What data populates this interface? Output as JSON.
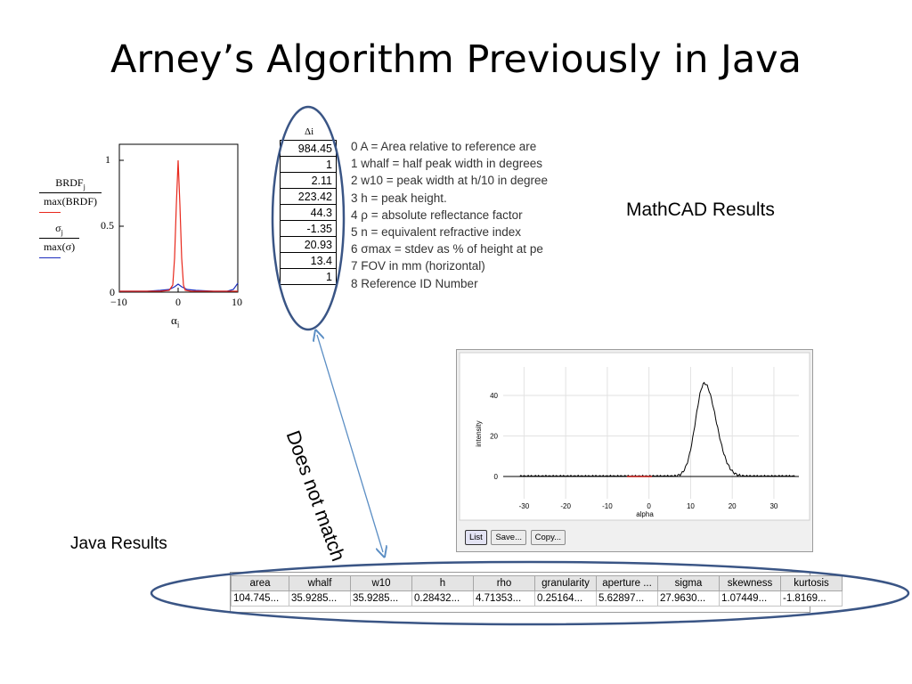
{
  "slide": {
    "title": "Arney’s Algorithm Previously in Java",
    "mathcad_label": "MathCAD Results",
    "java_label": "Java Results",
    "arrow_label": "Does not match"
  },
  "mathcad_plot": {
    "legend": {
      "top_num": "BRDF",
      "top_sub": "j",
      "top_den": "max(BRDF)",
      "bot_num": "σ",
      "bot_sub": "j",
      "bot_den": "max(σ)"
    },
    "x_axis_label": "α",
    "x_axis_sub": "i",
    "x_ticks": [
      "−10",
      "0",
      "10"
    ],
    "y_ticks": [
      "0",
      "0.5",
      "1"
    ],
    "colors": {
      "brdf": "#e8281c",
      "sigma": "#1d2dbd"
    }
  },
  "mathcad_table": {
    "header": "Δi",
    "values": [
      "984.45",
      "1",
      "2.11",
      "223.42",
      "44.3",
      "-1.35",
      "20.93",
      "13.4",
      "1"
    ]
  },
  "legend_lines": [
    "0  A = Area relative to   reference are",
    "1  whalf = half peak width in degrees",
    "2  w10 = peak width at h/10 in degree",
    "3  h = peak height.",
    "4  ρ = absolute reflectance factor",
    "5  n = equivalent refractive index",
    "6  σmax = stdev as % of height at pe",
    "7  FOV in mm (horizontal)",
    "8 Reference ID Number"
  ],
  "java_plot": {
    "x_label": "alpha",
    "y_label": "intensity",
    "x_ticks": [
      "-30",
      "-20",
      "-10",
      "0",
      "10",
      "20",
      "30"
    ],
    "y_ticks": [
      "0",
      "20",
      "40"
    ],
    "buttons": [
      "List",
      "Save...",
      "Copy..."
    ]
  },
  "java_table": {
    "headers": [
      "area",
      "whalf",
      "w10",
      "h",
      "rho",
      "granularity",
      "aperture ...",
      "sigma",
      "skewness",
      "kurtosis"
    ],
    "row": [
      "104.745...",
      "35.9285...",
      "35.9285...",
      "0.28432...",
      "4.71353...",
      "0.25164...",
      "5.62897...",
      "27.9630...",
      "1.07449...",
      "-1.8169..."
    ]
  },
  "colors": {
    "ellipse": "#3a5585",
    "arrow": "#5b8ec4"
  }
}
